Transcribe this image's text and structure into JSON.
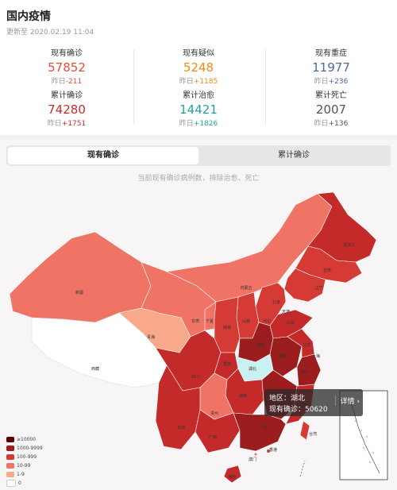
{
  "header": {
    "title": "国内疫情",
    "updated": "更新至 2020.02.19 11:04"
  },
  "stats": [
    {
      "label": "现有确诊",
      "value": "57852",
      "delta_prefix": "昨日",
      "delta": "-211",
      "color": "#e64a3b"
    },
    {
      "label": "现有疑似",
      "value": "5248",
      "delta_prefix": "昨日",
      "delta": "+1185",
      "color": "#ef8a18"
    },
    {
      "label": "现有重症",
      "value": "11977",
      "delta_prefix": "昨日",
      "delta": "+236",
      "color": "#4b6aa1"
    },
    {
      "label": "累计确诊",
      "value": "74280",
      "delta_prefix": "昨日",
      "delta": "+1751",
      "color": "#cc2a2a"
    },
    {
      "label": "累计治愈",
      "value": "14421",
      "delta_prefix": "昨日",
      "delta": "+1826",
      "color": "#22a3a3"
    },
    {
      "label": "累计死亡",
      "value": "2007",
      "delta_prefix": "昨日",
      "delta": "+136",
      "color": "#555555"
    }
  ],
  "tabs": [
    {
      "label": "现有确诊",
      "active": true
    },
    {
      "label": "累计确诊",
      "active": false
    }
  ],
  "map": {
    "subtitle": "当前现有确诊病例数，排除治愈、死亡",
    "tooltip": {
      "region": "地区：湖北",
      "count": "现有确诊：50620",
      "detail": "详情 ›"
    },
    "provinces": [
      "新疆",
      "西藏",
      "青海",
      "甘肃",
      "宁夏",
      "陕西",
      "内蒙古",
      "黑龙江",
      "吉林",
      "辽宁",
      "北京",
      "天津",
      "山西",
      "河北",
      "山东",
      "河南",
      "四川",
      "湖北",
      "重庆",
      "贵州",
      "湖南",
      "江西",
      "安徽",
      "江苏",
      "浙江",
      "福建",
      "广东",
      "广西",
      "云南",
      "海南",
      "上海",
      "台湾",
      "香港",
      "澳门"
    ],
    "legend": [
      {
        "label": "≥10000",
        "color": "#5c0000"
      },
      {
        "label": "1000-9999",
        "color": "#9b1d1d"
      },
      {
        "label": "100-999",
        "color": "#d63a34"
      },
      {
        "label": "10-99",
        "color": "#f07466"
      },
      {
        "label": "1-9",
        "color": "#f7a98a"
      },
      {
        "label": "0",
        "color": "#ffffff"
      }
    ]
  }
}
